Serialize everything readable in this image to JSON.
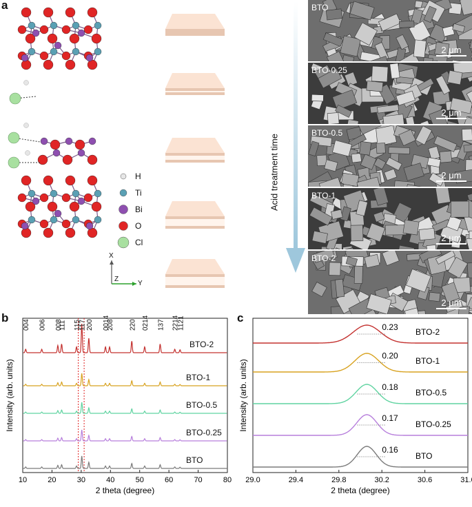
{
  "panel_a": {
    "label": "a",
    "legend": [
      {
        "symbol": "H",
        "color": "#e6e6e6"
      },
      {
        "symbol": "Ti",
        "color": "#5aa0b4"
      },
      {
        "symbol": "Bi",
        "color": "#8e4fb0"
      },
      {
        "symbol": "O",
        "color": "#e02525"
      },
      {
        "symbol": "Cl",
        "color": "#a8e0a0"
      }
    ],
    "axes": {
      "x": "X",
      "y": "Y",
      "z": "Z"
    },
    "arrow_label": "Acid treatment time",
    "sem": [
      {
        "label": "BTO",
        "scale": "2 μm"
      },
      {
        "label": "BTO-0.25",
        "scale": "2 μm"
      },
      {
        "label": "BTO-0.5",
        "scale": "2 μm"
      },
      {
        "label": "BTO-1",
        "scale": "2 μm"
      },
      {
        "label": "BTO-2",
        "scale": "2 μm"
      }
    ]
  },
  "chart_data": [
    {
      "panel": "b",
      "type": "line",
      "xlabel": "2 theta (degree)",
      "ylabel": "Intensity (arb. units)",
      "xlim": [
        10,
        80
      ],
      "xticks": [
        10,
        20,
        30,
        40,
        50,
        60,
        70,
        80
      ],
      "peak_labels": [
        "004",
        "006",
        "008",
        "111",
        "115",
        "117",
        "200",
        "0014",
        "208",
        "220",
        "0214",
        "137",
        "2214",
        "1121"
      ],
      "peak_positions": [
        11.0,
        16.5,
        22.0,
        23.3,
        28.4,
        30.2,
        32.6,
        38.3,
        39.7,
        47.3,
        51.7,
        57.0,
        62.0,
        63.8
      ],
      "peak_heights": [
        0.12,
        0.12,
        0.25,
        0.3,
        0.2,
        1.0,
        0.5,
        0.2,
        0.2,
        0.4,
        0.2,
        0.3,
        0.12,
        0.1
      ],
      "reference_lines": [
        29.0,
        31.0
      ],
      "series": [
        {
          "name": "BTO",
          "color": "#7a7a7a"
        },
        {
          "name": "BTO-0.25",
          "color": "#b77fdc"
        },
        {
          "name": "BTO-0.5",
          "color": "#5fd3a0"
        },
        {
          "name": "BTO-1",
          "color": "#d8a21f"
        },
        {
          "name": "BTO-2",
          "color": "#c3302e"
        }
      ]
    },
    {
      "panel": "c",
      "type": "line",
      "xlabel": "2 theta (degree)",
      "ylabel": "Intensity (arb. units)",
      "xlim": [
        29.0,
        31.0
      ],
      "xticks": [
        29.0,
        29.4,
        29.8,
        30.2,
        30.6,
        31.0
      ],
      "series": [
        {
          "name": "BTO",
          "fwhm": "0.16",
          "center": 30.06,
          "color": "#7a7a7a"
        },
        {
          "name": "BTO-0.25",
          "fwhm": "0.17",
          "center": 30.06,
          "color": "#b77fdc"
        },
        {
          "name": "BTO-0.5",
          "fwhm": "0.18",
          "center": 30.06,
          "color": "#5fd3a0"
        },
        {
          "name": "BTO-1",
          "fwhm": "0.20",
          "center": 30.06,
          "color": "#d8a21f"
        },
        {
          "name": "BTO-2",
          "fwhm": "0.23",
          "center": 30.06,
          "color": "#c3302e"
        }
      ]
    }
  ]
}
